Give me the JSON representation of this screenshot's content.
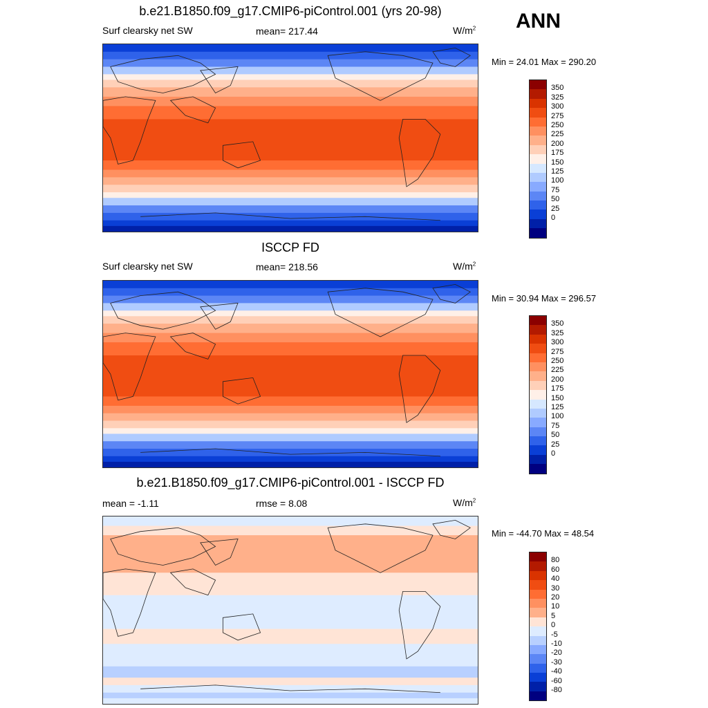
{
  "season": "ANN",
  "panels": [
    {
      "title": "b.e21.B1850.f09_g17.CMIP6-piControl.001 (yrs 20-98)",
      "left": "Surf clearsky net SW",
      "center": "mean= 217.44",
      "units": "W/m",
      "units_sup": "2",
      "minmax": "Min =  24.01 Max = 290.20",
      "bar_labels": [
        "350",
        "325",
        "300",
        "275",
        "250",
        "225",
        "200",
        "175",
        "150",
        "125",
        "100",
        "75",
        "50",
        "25",
        "0"
      ],
      "bar_colors": [
        "#8b0000",
        "#b31a00",
        "#d93300",
        "#f04d12",
        "#ff6d33",
        "#ff9060",
        "#ffb08a",
        "#ffd0b8",
        "#fff0e8",
        "#d6e8ff",
        "#b0cbff",
        "#88aaff",
        "#5c86f5",
        "#2f62ea",
        "#0a3fd6",
        "#0020a8",
        "#000080"
      ],
      "map_kind": "abs"
    },
    {
      "title": "ISCCP FD",
      "left": "Surf clearsky net SW",
      "center": "mean= 218.56",
      "units": "W/m",
      "units_sup": "2",
      "minmax": "Min =  30.94 Max = 296.57",
      "bar_labels": [
        "350",
        "325",
        "300",
        "275",
        "250",
        "225",
        "200",
        "175",
        "150",
        "125",
        "100",
        "75",
        "50",
        "25",
        "0"
      ],
      "bar_colors": [
        "#8b0000",
        "#b31a00",
        "#d93300",
        "#f04d12",
        "#ff6d33",
        "#ff9060",
        "#ffb08a",
        "#ffd0b8",
        "#fff0e8",
        "#d6e8ff",
        "#b0cbff",
        "#88aaff",
        "#5c86f5",
        "#2f62ea",
        "#0a3fd6",
        "#0020a8",
        "#000080"
      ],
      "map_kind": "abs"
    },
    {
      "title": "b.e21.B1850.f09_g17.CMIP6-piControl.001 - ISCCP FD",
      "left": "mean =  -1.11",
      "center": "rmse =   8.08",
      "units": "W/m",
      "units_sup": "2",
      "minmax": "Min = -44.70 Max =  48.54",
      "bar_labels": [
        "80",
        "60",
        "40",
        "30",
        "20",
        "10",
        "5",
        "0",
        "-5",
        "-10",
        "-20",
        "-30",
        "-40",
        "-60",
        "-80"
      ],
      "bar_colors": [
        "#8b0000",
        "#b31a00",
        "#d93300",
        "#f04d12",
        "#ff6d33",
        "#ff9060",
        "#ffb08a",
        "#ffe4d6",
        "#deecff",
        "#b8d0ff",
        "#88aaff",
        "#5c86f5",
        "#2f62ea",
        "#0a3fd6",
        "#0020a8",
        "#000080"
      ],
      "map_kind": "diff"
    }
  ]
}
